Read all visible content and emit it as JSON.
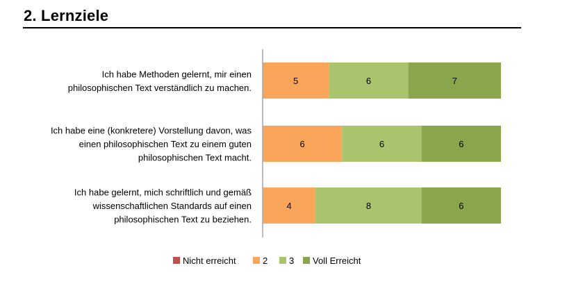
{
  "heading": "2. Lernziele",
  "chart_data": {
    "type": "bar",
    "orientation": "horizontal",
    "stacked": true,
    "normalized": true,
    "title": "",
    "categories": [
      [
        "Ich habe Methoden gelernt, mir einen",
        "philosophischen Text verständlich zu machen."
      ],
      [
        "Ich habe eine (konkretere) Vorstellung davon, was",
        "einen philosophischen Text zu einem guten",
        "philosophischen Text macht."
      ],
      [
        "Ich habe gelernt, mich schriftlich und gemäß",
        "wissenschaftlichen Standards auf einen",
        "philosophischen Text zu beziehen."
      ]
    ],
    "series": [
      {
        "name": "Nicht erreicht",
        "color": "#c0504d",
        "values": [
          0,
          0,
          0
        ]
      },
      {
        "name": "2",
        "color": "#f9a65a",
        "values": [
          5,
          6,
          4
        ]
      },
      {
        "name": "3",
        "color": "#a9c46c",
        "values": [
          6,
          6,
          8
        ]
      },
      {
        "name": "Voll Erreicht",
        "color": "#8aa64d",
        "values": [
          7,
          6,
          6
        ]
      }
    ],
    "legend": "bottom",
    "grid": false,
    "axis_color": "#a6a6a6"
  }
}
